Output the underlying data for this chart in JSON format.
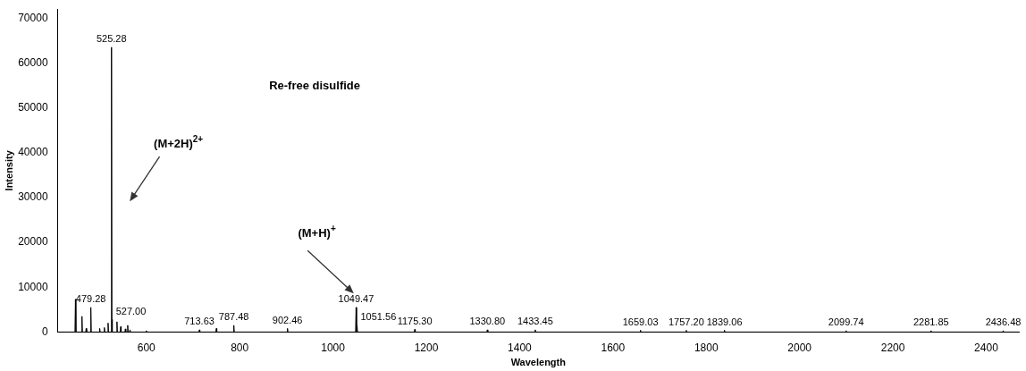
{
  "chart_data": {
    "type": "line",
    "xlabel": "Wavelength",
    "ylabel": "Intensity",
    "xlim": [
      410,
      2470
    ],
    "xticks": [
      600,
      800,
      1000,
      1200,
      1400,
      1600,
      1800,
      2000,
      2200,
      2400
    ],
    "ylim": [
      0,
      72000
    ],
    "yticks": [
      0,
      10000,
      20000,
      30000,
      40000,
      50000,
      60000,
      70000
    ],
    "grid": false,
    "legend": false,
    "marker": "none",
    "line_style": "solid",
    "series": [
      {
        "color": "#000000",
        "x": [
          410,
          447,
          448,
          449,
          461,
          462,
          463,
          470,
          471,
          472,
          480,
          481,
          482,
          499,
          500,
          501,
          509,
          510,
          511,
          517,
          518,
          519,
          524.28,
          525.28,
          526.28,
          526.5,
          527,
          527.5,
          536,
          537,
          538,
          544,
          545,
          546,
          554,
          555,
          556,
          559,
          560,
          561,
          564,
          565,
          566,
          599,
          600,
          601,
          712.63,
          713.63,
          714.63,
          749,
          750,
          751,
          786.48,
          787.48,
          788.48,
          901.46,
          902.46,
          903.46,
          1048.47,
          1049.47,
          1050.47,
          1050.56,
          1051.56,
          1052.56,
          1174.3,
          1175.3,
          1176.3,
          1329.8,
          1330.8,
          1331.8,
          1432.45,
          1433.45,
          1434.45,
          1658.03,
          1659.03,
          1660.03,
          1756.2,
          1757.2,
          1758.2,
          1838.06,
          1839.06,
          1840.06,
          2098.74,
          2099.74,
          2100.74,
          2280.85,
          2281.85,
          2282.85,
          2435.48,
          2436.48,
          2437.48,
          2470
        ],
        "values": [
          0,
          0,
          7300,
          0,
          0,
          3500,
          0,
          0,
          800,
          0,
          0,
          5500,
          0,
          0,
          800,
          0,
          0,
          1000,
          0,
          0,
          2000,
          0,
          0,
          63500,
          0,
          0,
          2800,
          0,
          0,
          2300,
          0,
          0,
          1200,
          0,
          0,
          700,
          0,
          0,
          1500,
          0,
          0,
          500,
          0,
          0,
          300,
          0,
          0,
          500,
          0,
          0,
          800,
          0,
          0,
          1500,
          0,
          0,
          800,
          0,
          0,
          5500,
          0,
          0,
          1500,
          0,
          0,
          600,
          0,
          0,
          500,
          0,
          0,
          500,
          0,
          0,
          400,
          0,
          0,
          400,
          0,
          0,
          400,
          0,
          0,
          300,
          0,
          0,
          300,
          0,
          0,
          300,
          0,
          0
        ]
      }
    ],
    "annotations": [
      "Re-free disulfide",
      {
        "text": "525.28",
        "x": 525.28,
        "y": 63500
      },
      {
        "text": "479.28",
        "x": 481,
        "y": 5500
      },
      {
        "text": "527.00",
        "x": 527,
        "y": 2800
      },
      {
        "text": "713.63",
        "x": 713.63,
        "y": 500
      },
      {
        "text": "787.48",
        "x": 787.48,
        "y": 1500
      },
      {
        "text": "902.46",
        "x": 902.46,
        "y": 800
      },
      {
        "text": "1049.47",
        "x": 1049.47,
        "y": 5500
      },
      {
        "text": "1051.56",
        "x": 1051.56,
        "y": 1500
      },
      {
        "text": "1175.30",
        "x": 1175.3,
        "y": 600
      },
      {
        "text": "1330.80",
        "x": 1330.8,
        "y": 500
      },
      {
        "text": "1433.45",
        "x": 1433.45,
        "y": 500
      },
      {
        "text": "1659.03",
        "x": 1659.03,
        "y": 400
      },
      {
        "text": "1757.20",
        "x": 1757.2,
        "y": 400
      },
      {
        "text": "1839.06",
        "x": 1839.06,
        "y": 400
      },
      {
        "text": "2099.74",
        "x": 2099.74,
        "y": 300
      },
      {
        "text": "2281.85",
        "x": 2281.85,
        "y": 300
      },
      {
        "text": "2436.48",
        "x": 2436.48,
        "y": 300
      },
      "(M+2H)$^{2+}$",
      "(M+H)$^{+}$"
    ]
  }
}
